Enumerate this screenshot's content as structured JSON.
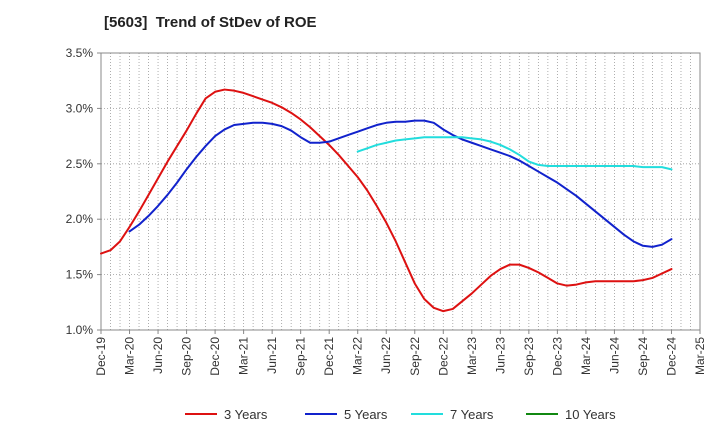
{
  "title": "[5603]  Trend of StDev of ROE",
  "chart_data": {
    "type": "line",
    "title": "[5603]  Trend of StDev of ROE",
    "xlabel": "",
    "ylabel": "",
    "ylim": [
      1.0,
      3.5
    ],
    "y_ticks": [
      "1.0%",
      "1.5%",
      "2.0%",
      "2.5%",
      "3.0%",
      "3.5%"
    ],
    "x_ticks": [
      "Dec-19",
      "Mar-20",
      "Jun-20",
      "Sep-20",
      "Dec-20",
      "Mar-21",
      "Jun-21",
      "Sep-21",
      "Dec-21",
      "Mar-22",
      "Jun-22",
      "Sep-22",
      "Dec-22",
      "Mar-23",
      "Jun-23",
      "Sep-23",
      "Dec-23",
      "Mar-24",
      "Jun-24",
      "Sep-24",
      "Dec-24",
      "Mar-25"
    ],
    "grid": true,
    "legend_position": "bottom",
    "series": [
      {
        "name": "3 Years",
        "color": "#dd1111",
        "x": [
          "Dec-19",
          "Jan-20",
          "Feb-20",
          "Mar-20",
          "Apr-20",
          "May-20",
          "Jun-20",
          "Jul-20",
          "Aug-20",
          "Sep-20",
          "Oct-20",
          "Nov-20",
          "Dec-20",
          "Jan-21",
          "Feb-21",
          "Mar-21",
          "Apr-21",
          "May-21",
          "Jun-21",
          "Jul-21",
          "Aug-21",
          "Sep-21",
          "Oct-21",
          "Nov-21",
          "Dec-21",
          "Jan-22",
          "Feb-22",
          "Mar-22",
          "Apr-22",
          "May-22",
          "Jun-22",
          "Jul-22",
          "Aug-22",
          "Sep-22",
          "Oct-22",
          "Nov-22",
          "Dec-22",
          "Jan-23",
          "Feb-23",
          "Mar-23",
          "Apr-23",
          "May-23",
          "Jun-23",
          "Jul-23",
          "Aug-23",
          "Sep-23",
          "Oct-23",
          "Nov-23",
          "Dec-23",
          "Jan-24",
          "Feb-24",
          "Mar-24",
          "Apr-24",
          "May-24",
          "Jun-24",
          "Jul-24",
          "Aug-24",
          "Sep-24",
          "Oct-24",
          "Nov-24",
          "Dec-24"
        ],
        "values": [
          1.69,
          1.72,
          1.8,
          1.93,
          2.07,
          2.22,
          2.37,
          2.52,
          2.66,
          2.8,
          2.95,
          3.09,
          3.15,
          3.17,
          3.16,
          3.14,
          3.11,
          3.08,
          3.05,
          3.01,
          2.96,
          2.9,
          2.83,
          2.75,
          2.67,
          2.58,
          2.48,
          2.38,
          2.26,
          2.12,
          1.97,
          1.8,
          1.61,
          1.42,
          1.28,
          1.2,
          1.17,
          1.19,
          1.26,
          1.33,
          1.41,
          1.49,
          1.55,
          1.59,
          1.59,
          1.56,
          1.52,
          1.47,
          1.42,
          1.4,
          1.41,
          1.43,
          1.44,
          1.44,
          1.44,
          1.44,
          1.44,
          1.45,
          1.47,
          1.51,
          1.55
        ]
      },
      {
        "name": "5 Years",
        "color": "#1122cc",
        "x": [
          "Mar-20",
          "Apr-20",
          "May-20",
          "Jun-20",
          "Jul-20",
          "Aug-20",
          "Sep-20",
          "Oct-20",
          "Nov-20",
          "Dec-20",
          "Jan-21",
          "Feb-21",
          "Mar-21",
          "Apr-21",
          "May-21",
          "Jun-21",
          "Jul-21",
          "Aug-21",
          "Sep-21",
          "Oct-21",
          "Nov-21",
          "Dec-21",
          "Jan-22",
          "Feb-22",
          "Mar-22",
          "Apr-22",
          "May-22",
          "Jun-22",
          "Jul-22",
          "Aug-22",
          "Sep-22",
          "Oct-22",
          "Nov-22",
          "Dec-22",
          "Jan-23",
          "Feb-23",
          "Mar-23",
          "Apr-23",
          "May-23",
          "Jun-23",
          "Jul-23",
          "Aug-23",
          "Sep-23",
          "Oct-23",
          "Nov-23",
          "Dec-23",
          "Jan-24",
          "Feb-24",
          "Mar-24",
          "Apr-24",
          "May-24",
          "Jun-24",
          "Jul-24",
          "Aug-24",
          "Sep-24",
          "Oct-24",
          "Nov-24",
          "Dec-24"
        ],
        "values": [
          1.89,
          1.95,
          2.03,
          2.12,
          2.22,
          2.33,
          2.45,
          2.56,
          2.66,
          2.75,
          2.81,
          2.85,
          2.86,
          2.87,
          2.87,
          2.86,
          2.84,
          2.8,
          2.74,
          2.69,
          2.69,
          2.7,
          2.73,
          2.76,
          2.79,
          2.82,
          2.85,
          2.87,
          2.88,
          2.88,
          2.89,
          2.89,
          2.87,
          2.81,
          2.76,
          2.72,
          2.69,
          2.66,
          2.63,
          2.6,
          2.57,
          2.53,
          2.48,
          2.43,
          2.38,
          2.33,
          2.27,
          2.21,
          2.14,
          2.07,
          2.0,
          1.93,
          1.86,
          1.8,
          1.76,
          1.75,
          1.77,
          1.82
        ]
      },
      {
        "name": "7 Years",
        "color": "#22dddd",
        "x": [
          "Mar-22",
          "Apr-22",
          "May-22",
          "Jun-22",
          "Jul-22",
          "Aug-22",
          "Sep-22",
          "Oct-22",
          "Nov-22",
          "Dec-22",
          "Jan-23",
          "Feb-23",
          "Mar-23",
          "Apr-23",
          "May-23",
          "Jun-23",
          "Jul-23",
          "Aug-23",
          "Sep-23",
          "Oct-23",
          "Nov-23",
          "Dec-23",
          "Jan-24",
          "Feb-24",
          "Mar-24",
          "Apr-24",
          "May-24",
          "Jun-24",
          "Jul-24",
          "Aug-24",
          "Sep-24",
          "Oct-24",
          "Nov-24",
          "Dec-24"
        ],
        "values": [
          2.61,
          2.64,
          2.67,
          2.69,
          2.71,
          2.72,
          2.73,
          2.74,
          2.74,
          2.74,
          2.74,
          2.74,
          2.73,
          2.72,
          2.7,
          2.67,
          2.63,
          2.58,
          2.52,
          2.49,
          2.48,
          2.48,
          2.48,
          2.48,
          2.48,
          2.48,
          2.48,
          2.48,
          2.48,
          2.48,
          2.47,
          2.47,
          2.47,
          2.45
        ]
      },
      {
        "name": "10 Years",
        "color": "#118811",
        "x": [],
        "values": []
      }
    ]
  }
}
